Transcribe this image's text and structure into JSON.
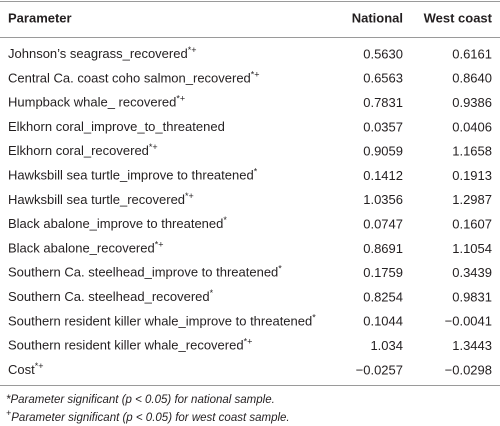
{
  "table": {
    "header": [
      "Parameter",
      "National",
      "West coast"
    ],
    "rows": [
      {
        "parameter": "Johnson’s seagrass_recovered",
        "marks": "*+",
        "national": "0.5630",
        "west_coast": "0.6161"
      },
      {
        "parameter": "Central Ca. coast coho salmon_recovered",
        "marks": "*+",
        "national": "0.6563",
        "west_coast": "0.8640"
      },
      {
        "parameter": "Humpback whale_ recovered",
        "marks": "*+",
        "national": "0.7831",
        "west_coast": "0.9386"
      },
      {
        "parameter": "Elkhorn coral_improve_to_threatened",
        "national": "0.0357",
        "west_coast": "0.0406"
      },
      {
        "parameter": "Elkhorn coral_recovered",
        "marks": "*+",
        "national": "0.9059",
        "west_coast": "1.1658"
      },
      {
        "parameter": "Hawksbill sea turtle_improve to threatened",
        "marks": "*",
        "national": "0.1412",
        "west_coast": "0.1913"
      },
      {
        "parameter": "Hawksbill sea turtle_recovered",
        "marks": "*+",
        "national": "1.0356",
        "west_coast": "1.2987"
      },
      {
        "parameter": "Black abalone_improve to threatened",
        "marks": "*",
        "national": "0.0747",
        "west_coast": "0.1607"
      },
      {
        "parameter": "Black abalone_recovered",
        "marks": "*+",
        "national": "0.8691",
        "west_coast": "1.1054"
      },
      {
        "parameter": "Southern Ca. steelhead_improve to threatened",
        "marks": "*",
        "national": "0.1759",
        "west_coast": "0.3439"
      },
      {
        "parameter": "Southern Ca. steelhead_recovered",
        "marks": "*",
        "national": "0.8254",
        "west_coast": "0.9831"
      },
      {
        "parameter": "Southern resident killer whale_improve to threatened",
        "marks": "*",
        "national": "0.1044",
        "west_coast": "−0.0041"
      },
      {
        "parameter": "Southern resident killer whale_recovered",
        "marks": "*+",
        "national": "1.034",
        "west_coast": "1.3443"
      },
      {
        "parameter": "Cost",
        "marks": "*+",
        "national": "−0.0257",
        "west_coast": "−0.0298"
      }
    ],
    "footnotes": [
      {
        "mark": "*",
        "text": "Parameter significant (p < 0.05) for national sample."
      },
      {
        "mark": "+",
        "text": "Parameter significant (p < 0.05) for west coast sample."
      }
    ]
  }
}
